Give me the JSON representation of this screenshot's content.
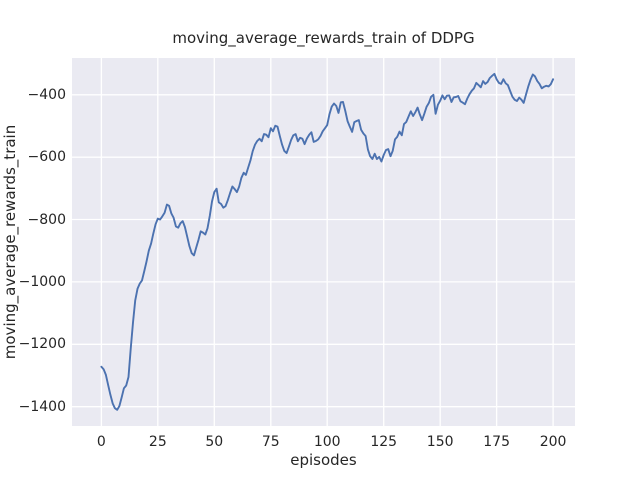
{
  "chart_data": {
    "type": "line",
    "title": "moving_average_rewards_train of DDPG",
    "xlabel": "episodes",
    "ylabel": "moving_average_rewards_train",
    "legend": false,
    "grid": true,
    "xlim": [
      -13,
      209.7
    ],
    "ylim": [
      -1462,
      -282
    ],
    "xticks": [
      {
        "v": 0,
        "label": "0"
      },
      {
        "v": 25,
        "label": "25"
      },
      {
        "v": 50,
        "label": "50"
      },
      {
        "v": 75,
        "label": "75"
      },
      {
        "v": 100,
        "label": "100"
      },
      {
        "v": 125,
        "label": "125"
      },
      {
        "v": 150,
        "label": "150"
      },
      {
        "v": 175,
        "label": "175"
      },
      {
        "v": 200,
        "label": "200"
      }
    ],
    "yticks": [
      {
        "v": -400,
        "label": "−400"
      },
      {
        "v": -600,
        "label": "−600"
      },
      {
        "v": -800,
        "label": "−800"
      },
      {
        "v": -1000,
        "label": "−1000"
      },
      {
        "v": -1200,
        "label": "−1200"
      },
      {
        "v": -1400,
        "label": "−1400"
      }
    ],
    "x_start": 0,
    "x_step": 1,
    "series": [
      {
        "name": "moving_average_rewards_train",
        "color": "#4c72b0",
        "values": [
          -1272,
          -1280,
          -1298,
          -1330,
          -1362,
          -1390,
          -1405,
          -1410,
          -1398,
          -1370,
          -1341,
          -1332,
          -1305,
          -1215,
          -1130,
          -1060,
          -1022,
          -1005,
          -995,
          -965,
          -935,
          -900,
          -877,
          -845,
          -815,
          -797,
          -800,
          -790,
          -778,
          -752,
          -756,
          -781,
          -794,
          -822,
          -826,
          -812,
          -805,
          -824,
          -855,
          -885,
          -908,
          -915,
          -890,
          -865,
          -838,
          -842,
          -848,
          -828,
          -788,
          -742,
          -712,
          -701,
          -745,
          -750,
          -762,
          -757,
          -738,
          -715,
          -694,
          -702,
          -712,
          -695,
          -666,
          -650,
          -657,
          -633,
          -611,
          -581,
          -560,
          -548,
          -541,
          -549,
          -526,
          -528,
          -536,
          -507,
          -517,
          -499,
          -502,
          -532,
          -560,
          -580,
          -587,
          -567,
          -545,
          -530,
          -526,
          -549,
          -538,
          -541,
          -558,
          -540,
          -528,
          -520,
          -551,
          -548,
          -543,
          -532,
          -517,
          -507,
          -497,
          -462,
          -438,
          -428,
          -436,
          -458,
          -424,
          -423,
          -452,
          -485,
          -502,
          -519,
          -488,
          -484,
          -481,
          -512,
          -524,
          -532,
          -575,
          -597,
          -606,
          -589,
          -606,
          -599,
          -614,
          -593,
          -577,
          -574,
          -597,
          -580,
          -543,
          -535,
          -518,
          -530,
          -494,
          -487,
          -470,
          -453,
          -468,
          -456,
          -441,
          -463,
          -481,
          -461,
          -438,
          -426,
          -406,
          -400,
          -461,
          -432,
          -419,
          -402,
          -414,
          -403,
          -402,
          -423,
          -408,
          -407,
          -404,
          -421,
          -425,
          -430,
          -412,
          -398,
          -387,
          -379,
          -362,
          -369,
          -376,
          -356,
          -365,
          -359,
          -346,
          -339,
          -333,
          -350,
          -362,
          -365,
          -350,
          -363,
          -369,
          -388,
          -406,
          -416,
          -420,
          -409,
          -416,
          -426,
          -399,
          -374,
          -352,
          -335,
          -341,
          -356,
          -365,
          -379,
          -374,
          -371,
          -373,
          -366,
          -350
        ]
      }
    ],
    "style": {
      "figure_bg": "#ffffff",
      "plot_bg": "#eaeaf2",
      "grid_color": "#ffffff",
      "grid_width": 1.3,
      "line_width": 1.9,
      "text_color": "#262626"
    }
  }
}
